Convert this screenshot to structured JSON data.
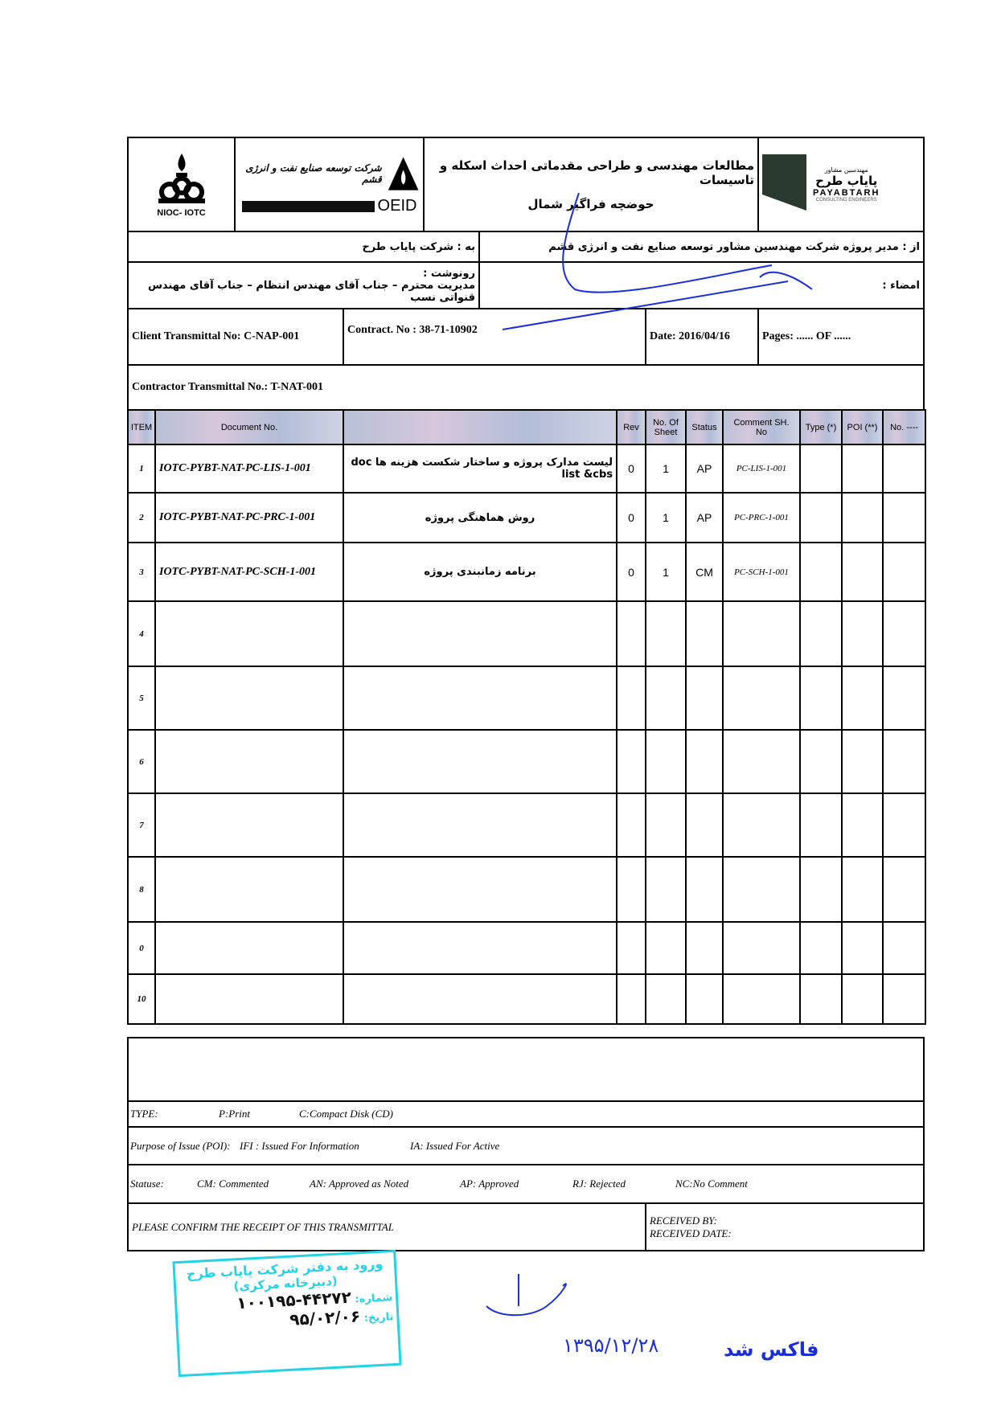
{
  "header": {
    "left_logo": "NIOC- IOTC",
    "oeid_logo": {
      "name": "شرکت توسعه صنایع نفت و انرژی قشم",
      "label": "OEID"
    },
    "title_line1": "مطالعات مهندسی و طراحی مقدماتی احداث اسکله و تاسیسات",
    "title_line2": "حوضچه فراگیر شمال",
    "right_logo": {
      "fa": "پایاب طرح",
      "en": "PAYABTARH",
      "sub": "CONSULTING ENGINEERS",
      "top": "مهندسین مشاور"
    }
  },
  "to": "به : شرکت پایاب طرح",
  "from": "از : مدیر پروژه شرکت مهندسین مشاور  توسعه صنایع نفت و انرژی قشم",
  "cc_label": "رونوشت :",
  "cc": "مدیریت محترم – جناب آقای مهندس انتظام – جناب آقای مهندس قنواتی نسب",
  "signature_label": "امضاء :",
  "client_transmittal": "Client  Transmittal  No: C-NAP-001",
  "contract": "Contract. No :   38-71-10902",
  "date": "Date: 2016/04/16",
  "pages": "Pages: ......    OF ......",
  "contractor_transmittal": "Contractor Transmittal No.:  T-NAT-001",
  "columns": [
    "ITEM",
    "Document No.",
    "",
    "Rev",
    "No. Of Sheet",
    "Status",
    "Comment SH. No",
    "Type (*)",
    "POI   (**)",
    "No. ----"
  ],
  "rows": [
    {
      "item": "1",
      "doc": "IOTC-PYBT-NAT-PC-LIS-1-001",
      "title": "لیست مدارک پروژه و ساختار شکست هزینه ها  doc list &cbs",
      "rev": "0",
      "sheets": "1",
      "status": "AP",
      "comment": "PC-LIS-1-001"
    },
    {
      "item": "2",
      "doc": "IOTC-PYBT-NAT-PC-PRC-1-001",
      "title": "روش هماهنگی پروژه",
      "rev": "0",
      "sheets": "1",
      "status": "AP",
      "comment": "PC-PRC-1-001"
    },
    {
      "item": "3",
      "doc": "IOTC-PYBT-NAT-PC-SCH-1-001",
      "title": "برنامه زمانبندی پروژه",
      "rev": "0",
      "sheets": "1",
      "status": "CM",
      "comment": "PC-SCH-1-001"
    },
    {
      "item": "4"
    },
    {
      "item": "5"
    },
    {
      "item": "6"
    },
    {
      "item": "7"
    },
    {
      "item": "8"
    },
    {
      "item": "0"
    },
    {
      "item": "10"
    }
  ],
  "legend": {
    "type": [
      "TYPE:",
      "P:Print",
      "C:Compact Disk (CD)"
    ],
    "poi": [
      "Purpose of  Issue (POI):",
      "IFI : Issued For Information",
      "IA: Issued For Active"
    ],
    "status": [
      "Statuse:",
      "CM: Commented",
      "AN: Approved as Noted",
      "AP: Approved",
      "RJ: Rejected",
      "NC:No Comment"
    ],
    "confirm": "PLEASE CONFIRM THE RECEIPT OF THIS TRANSMITTAL",
    "received_by": "RECEIVED BY:",
    "received_date": "RECEIVED DATE:"
  },
  "stamp": {
    "line1": "ورود به دفتر شرکت پایاب طرح",
    "line2": "(دبیرخانه مرکزی)",
    "number_label": "شماره:",
    "number": "۱۰۰۱۹۵-۴۴۲۷۲",
    "date_label": "تاریخ:",
    "date": "۹۵/۰۲/۰۶"
  },
  "fax_note": {
    "date": "۱۳۹۵/۱۲/۲۸",
    "text": "فاکس شد"
  },
  "colors": {
    "stamp": "#22d3e6",
    "ink": "#1a2fd8"
  }
}
